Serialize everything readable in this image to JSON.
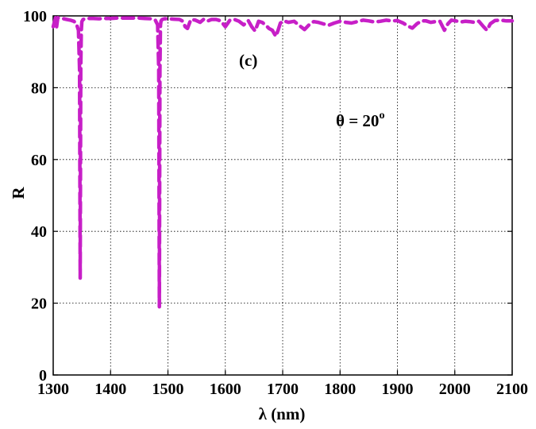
{
  "chart_data": {
    "type": "line",
    "xlabel": "λ (nm)",
    "ylabel": "R",
    "xlim": [
      1300,
      2100
    ],
    "ylim": [
      0,
      100
    ],
    "xticks": [
      1300,
      1400,
      1500,
      1600,
      1700,
      1800,
      1900,
      2000,
      2100
    ],
    "yticks": [
      0,
      20,
      40,
      60,
      80,
      100
    ],
    "grid": true,
    "annotations": {
      "panel": "(c)",
      "theta_prefix": "θ = 20",
      "theta_sup": "o"
    },
    "series": [
      {
        "color": "#c71fc7",
        "x": [
          1300,
          1304,
          1306,
          1308,
          1312,
          1318,
          1324,
          1330,
          1336,
          1340,
          1344,
          1346,
          1347,
          1348,
          1349,
          1350,
          1352,
          1356,
          1362,
          1370,
          1380,
          1390,
          1400,
          1410,
          1420,
          1430,
          1440,
          1450,
          1460,
          1470,
          1478,
          1482,
          1484,
          1485,
          1486,
          1487,
          1488,
          1490,
          1494,
          1500,
          1510,
          1520,
          1526,
          1530,
          1534,
          1540,
          1548,
          1556,
          1562,
          1568,
          1576,
          1584,
          1592,
          1600,
          1608,
          1616,
          1624,
          1632,
          1640,
          1646,
          1652,
          1658,
          1664,
          1670,
          1676,
          1682,
          1688,
          1692,
          1696,
          1702,
          1710,
          1720,
          1730,
          1738,
          1746,
          1754,
          1762,
          1770,
          1780,
          1790,
          1800,
          1810,
          1820,
          1830,
          1840,
          1850,
          1860,
          1870,
          1880,
          1890,
          1900,
          1910,
          1918,
          1926,
          1934,
          1942,
          1950,
          1958,
          1966,
          1974,
          1982,
          1988,
          1994,
          2002,
          2010,
          2018,
          2026,
          2034,
          2042,
          2050,
          2056,
          2062,
          2070,
          2080,
          2090,
          2100
        ],
        "y": [
          97,
          99.5,
          97,
          99.5,
          99.3,
          99.2,
          99,
          98.8,
          98.5,
          98,
          96,
          85,
          27,
          85,
          96,
          98.4,
          99,
          99.2,
          99.3,
          99.3,
          99.2,
          99.3,
          99.3,
          99.4,
          99.4,
          99.4,
          99.4,
          99.4,
          99.3,
          99.2,
          98.8,
          97.5,
          85,
          19,
          85,
          97.5,
          98.6,
          99,
          99.2,
          99.2,
          99.1,
          99,
          98.5,
          97,
          96.5,
          99,
          98.8,
          98.2,
          99,
          98.5,
          99,
          99,
          98.6,
          97,
          98.8,
          99,
          98.5,
          97.5,
          98.7,
          97,
          95.8,
          98.5,
          98.2,
          97.5,
          96.5,
          96,
          94.3,
          96,
          98,
          98.6,
          98.2,
          98.5,
          97.2,
          96.2,
          97.5,
          98.4,
          98.2,
          97.8,
          97.4,
          98,
          98.5,
          98.2,
          98,
          98.4,
          98.8,
          98.6,
          98.3,
          98.5,
          98.8,
          98.6,
          98.7,
          98,
          97.2,
          96.6,
          97.8,
          98.6,
          98.6,
          98.2,
          98.4,
          98.5,
          96,
          97.8,
          98.8,
          98.6,
          98.3,
          98.5,
          98.4,
          98.2,
          98.5,
          97,
          96,
          97.8,
          98.7,
          98.8,
          98.6,
          98.6
        ]
      }
    ]
  }
}
